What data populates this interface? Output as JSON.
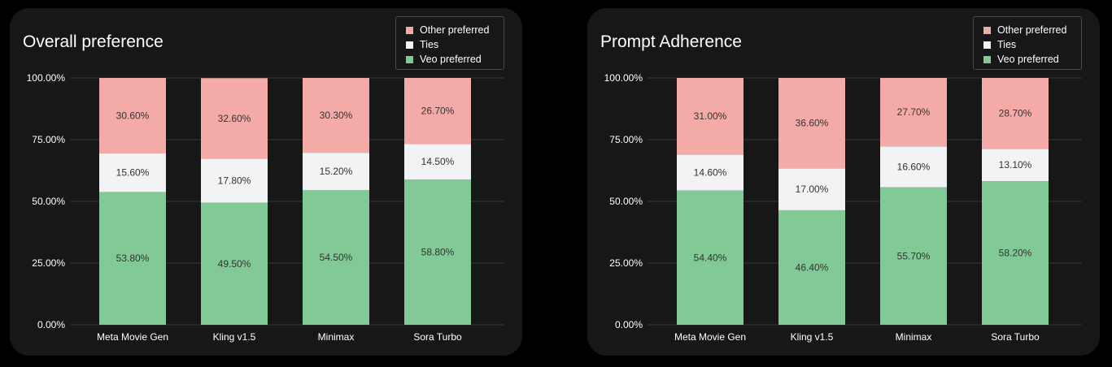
{
  "colors": {
    "other": "#f4aba7",
    "ties": "#f1f3f4",
    "veo": "#81c995",
    "gridline": "#3a3a3a",
    "panel_bg": "#171717"
  },
  "chart_data": [
    {
      "type": "bar",
      "stacked": true,
      "title": "Overall preference",
      "categories": [
        "Meta Movie Gen",
        "Kling v1.5",
        "Minimax",
        "Sora Turbo"
      ],
      "series": [
        {
          "name": "Veo preferred",
          "values": [
            53.8,
            49.5,
            54.5,
            58.8
          ],
          "labels": [
            "53.80%",
            "49.50%",
            "54.50%",
            "58.80%"
          ],
          "color": "#81c995"
        },
        {
          "name": "Ties",
          "values": [
            15.6,
            17.8,
            15.2,
            14.5
          ],
          "labels": [
            "15.60%",
            "17.80%",
            "15.20%",
            "14.50%"
          ],
          "color": "#f1f3f4"
        },
        {
          "name": "Other preferred",
          "values": [
            30.6,
            32.6,
            30.3,
            26.7
          ],
          "labels": [
            "30.60%",
            "32.60%",
            "30.30%",
            "26.70%"
          ],
          "color": "#f4aba7"
        }
      ],
      "legend": [
        "Other preferred",
        "Ties",
        "Veo preferred"
      ],
      "legend_position": "top-right",
      "y_ticks": [
        "0.00%",
        "25.00%",
        "50.00%",
        "75.00%",
        "100.00%"
      ],
      "ylim": [
        0,
        100
      ],
      "grid": true
    },
    {
      "type": "bar",
      "stacked": true,
      "title": "Prompt Adherence",
      "categories": [
        "Meta Movie Gen",
        "Kling v1.5",
        "Minimax",
        "Sora Turbo"
      ],
      "series": [
        {
          "name": "Veo preferred",
          "values": [
            54.4,
            46.4,
            55.7,
            58.2
          ],
          "labels": [
            "54.40%",
            "46.40%",
            "55.70%",
            "58.20%"
          ],
          "color": "#81c995"
        },
        {
          "name": "Ties",
          "values": [
            14.6,
            17.0,
            16.6,
            13.1
          ],
          "labels": [
            "14.60%",
            "17.00%",
            "16.60%",
            "13.10%"
          ],
          "color": "#f1f3f4"
        },
        {
          "name": "Other preferred",
          "values": [
            31.0,
            36.6,
            27.7,
            28.7
          ],
          "labels": [
            "31.00%",
            "36.60%",
            "27.70%",
            "28.70%"
          ],
          "color": "#f4aba7"
        }
      ],
      "legend": [
        "Other preferred",
        "Ties",
        "Veo preferred"
      ],
      "legend_position": "top-right",
      "y_ticks": [
        "0.00%",
        "25.00%",
        "50.00%",
        "75.00%",
        "100.00%"
      ],
      "ylim": [
        0,
        100
      ],
      "grid": true
    }
  ]
}
